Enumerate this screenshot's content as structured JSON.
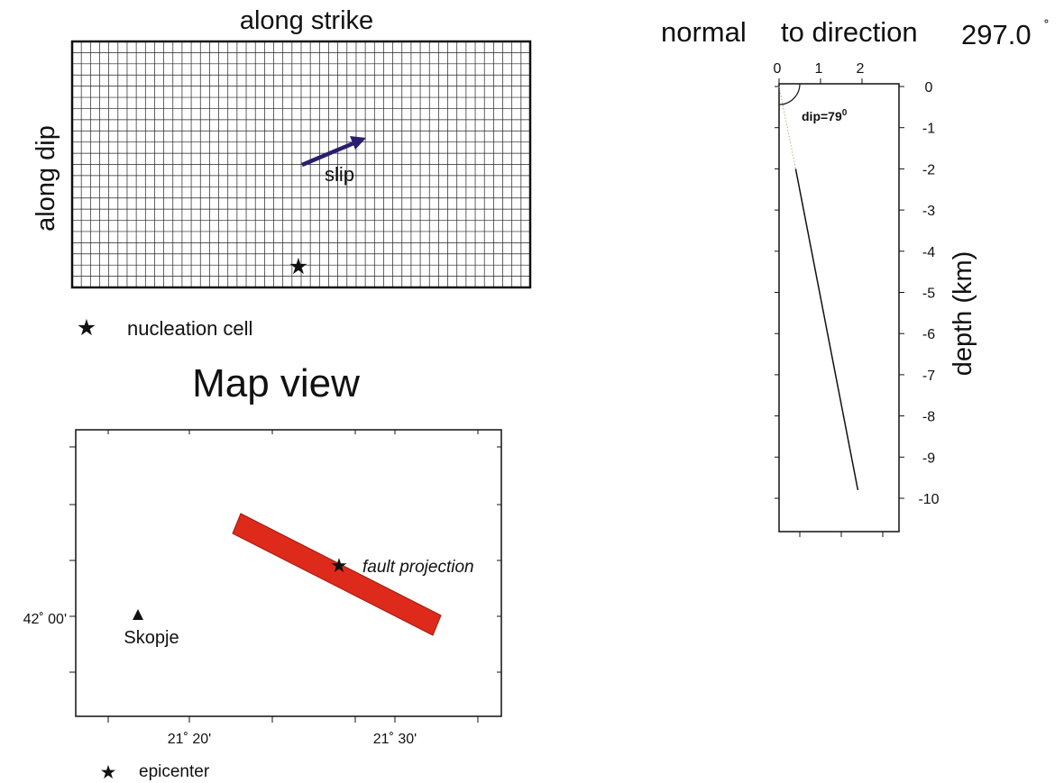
{
  "fault_plane": {
    "title": "along strike",
    "side_label": "along dip",
    "grid_columns": 50,
    "grid_rows": 22,
    "slip_label": "slip",
    "arrow_color": "#2a1e6e"
  },
  "legend": {
    "nucleation": {
      "icon": "star-icon",
      "label": "nucleation cell"
    },
    "epicenter": {
      "icon": "star-icon",
      "label": "epicenter"
    }
  },
  "map_view": {
    "title": "Map view",
    "fault_color": "#dd2a1b",
    "fault_label": "fault projection",
    "city": {
      "icon": "triangle-icon",
      "label": "Skopje"
    },
    "lat_label": "42˚ 00'",
    "lon_labels": [
      "21˚ 20'",
      "21˚ 30'"
    ]
  },
  "cross_section": {
    "title_prefix": "normal",
    "title_mid": "to direction",
    "direction_value": "297.0",
    "degree_symbol": "˚",
    "x_ticks": [
      "0",
      "1",
      "2"
    ],
    "y_ticks": [
      "0",
      "-1",
      "-2",
      "-3",
      "-4",
      "-5",
      "-6",
      "-7",
      "-8",
      "-9",
      "-10"
    ],
    "y_label": "depth (km)",
    "dip_label": "dip=79",
    "dip_superscript": "0"
  },
  "chart_data": {
    "type": "line",
    "title": "normal to direction 297.0 ˚",
    "ylabel": "depth (km)",
    "xlim": [
      0,
      3
    ],
    "ylim": [
      -11,
      0
    ],
    "grid": false,
    "series": [
      {
        "values": [
          [
            0.0,
            0.0
          ],
          [
            0.4,
            -2.0
          ]
        ],
        "style": "dotted"
      },
      {
        "values": [
          [
            0.4,
            -2.0
          ],
          [
            1.9,
            -9.8
          ]
        ]
      }
    ]
  }
}
